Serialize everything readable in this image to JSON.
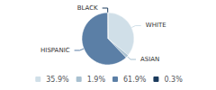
{
  "chart_data": {
    "type": "pie",
    "categories": [
      "WHITE",
      "ASIAN",
      "HISPANIC",
      "BLACK"
    ],
    "values": [
      35.9,
      1.9,
      61.9,
      0.3
    ],
    "value_labels": [
      "35.9%",
      "1.9%",
      "61.9%",
      "0.3%"
    ],
    "colors": [
      "#d0dfe8",
      "#a8c0d0",
      "#5b7fa6",
      "#1a3a5c"
    ],
    "legend": "bottom"
  }
}
